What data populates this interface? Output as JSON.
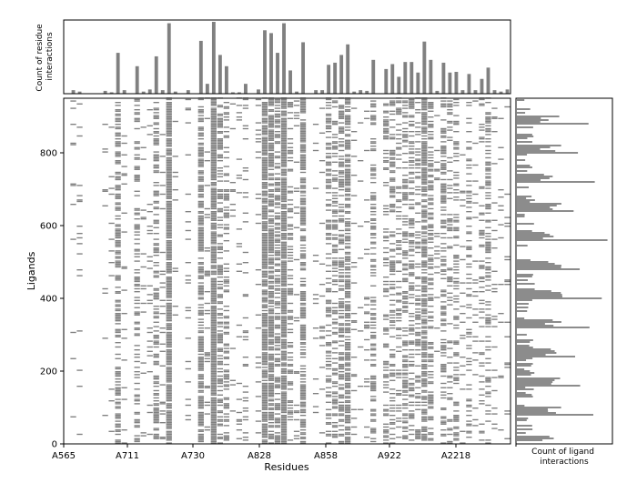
{
  "chart_data": [
    {
      "type": "heatmap",
      "title": "",
      "xlabel": "Residues",
      "ylabel": "Ligands",
      "x_tick_labels": [
        "A565",
        "A711",
        "A730",
        "A828",
        "A858",
        "A922",
        "A2218"
      ],
      "y_ticks": [
        0,
        200,
        400,
        600,
        800
      ],
      "ylim": [
        0,
        950
      ],
      "residue_count": 70,
      "color": "#808080",
      "grid": false
    },
    {
      "type": "bar",
      "ylabel": "Count of residue\ninteractions",
      "orientation": "vertical",
      "x_index": [
        1,
        2,
        6,
        7,
        8,
        9,
        11,
        12,
        13,
        14,
        15,
        16,
        17,
        19,
        21,
        22,
        23,
        24,
        25,
        26,
        27,
        28,
        30,
        31,
        32,
        33,
        34,
        35,
        36,
        37,
        39,
        40,
        41,
        42,
        43,
        44,
        45,
        46,
        47,
        48,
        50,
        51,
        52,
        53,
        54,
        55,
        56,
        57,
        58,
        59,
        60,
        61,
        62,
        63,
        64,
        65,
        66,
        67,
        68,
        69
      ],
      "values": [
        5,
        3,
        4,
        2,
        58,
        5,
        39,
        3,
        6,
        53,
        5,
        100,
        3,
        5,
        75,
        14,
        102,
        55,
        39,
        2,
        2,
        14,
        6,
        90,
        86,
        58,
        100,
        33,
        3,
        73,
        5,
        5,
        41,
        44,
        55,
        70,
        3,
        5,
        4,
        48,
        35,
        42,
        24,
        45,
        45,
        30,
        74,
        48,
        4,
        44,
        30,
        31,
        5,
        28,
        5,
        21,
        37,
        5,
        3,
        6
      ],
      "color": "#808080"
    },
    {
      "type": "bar",
      "xlabel": "Count of ligand\ninteractions",
      "orientation": "horizontal",
      "ligand_max": 950,
      "color": "#808080"
    }
  ]
}
